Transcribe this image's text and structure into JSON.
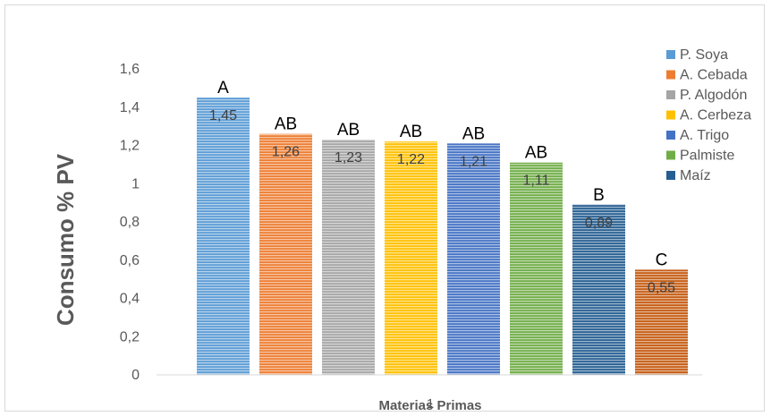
{
  "chart_data": {
    "type": "bar",
    "title": "",
    "xlabel": "Materias Primas",
    "x_axis_tick": "1",
    "ylabel": "Consumo % PV",
    "ylim": [
      0,
      1.6
    ],
    "y_ticks": [
      "0",
      "0,2",
      "0,4",
      "0,6",
      "0,8",
      "1",
      "1,2",
      "1,4",
      "1,6"
    ],
    "grid": false,
    "legend_position": "right",
    "series": [
      {
        "name": "P. Soya",
        "value": 1.45,
        "value_label": "1,45",
        "group_letter": "A",
        "color": "#5b9bd5"
      },
      {
        "name": "A. Cebada",
        "value": 1.26,
        "value_label": "1,26",
        "group_letter": "AB",
        "color": "#ed7d31"
      },
      {
        "name": "P. Algodón",
        "value": 1.23,
        "value_label": "1,23",
        "group_letter": "AB",
        "color": "#a5a5a5"
      },
      {
        "name": "A. Cerbeza",
        "value": 1.22,
        "value_label": "1,22",
        "group_letter": "AB",
        "color": "#ffc000"
      },
      {
        "name": "A. Trigo",
        "value": 1.21,
        "value_label": "1,21",
        "group_letter": "AB",
        "color": "#4472c4"
      },
      {
        "name": "Palmiste",
        "value": 1.11,
        "value_label": "1,11",
        "group_letter": "AB",
        "color": "#70ad47"
      },
      {
        "name": "Maíz",
        "value": 0.89,
        "value_label": "0,89",
        "group_letter": "B",
        "color": "#255e91"
      },
      {
        "name": "",
        "value": 0.55,
        "value_label": "0,55",
        "group_letter": "C",
        "color": "#c55a11"
      }
    ]
  }
}
